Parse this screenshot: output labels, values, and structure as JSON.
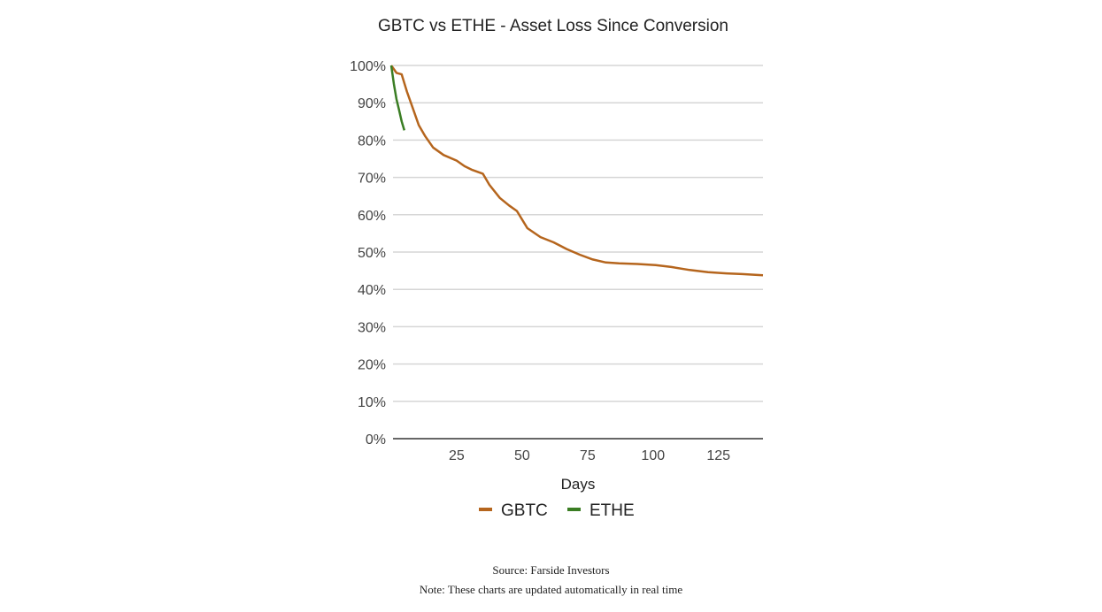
{
  "chart_data": {
    "type": "line",
    "title": "GBTC vs ETHE - Asset Loss Since Conversion",
    "xlabel": "Days",
    "ylabel": "",
    "xlim": [
      0,
      142
    ],
    "ylim": [
      0,
      100
    ],
    "x_ticks": [
      25,
      50,
      75,
      100,
      125
    ],
    "x_tick_labels": [
      "25",
      "50",
      "75",
      "100",
      "125"
    ],
    "y_ticks": [
      0,
      10,
      20,
      30,
      40,
      50,
      60,
      70,
      80,
      90,
      100
    ],
    "y_tick_labels": [
      "0%",
      "10%",
      "20%",
      "30%",
      "40%",
      "50%",
      "60%",
      "70%",
      "80%",
      "90%",
      "100%"
    ],
    "grid": true,
    "legend_position": "bottom",
    "series": [
      {
        "name": "GBTC",
        "color": "#b5651d",
        "points": [
          [
            0,
            100
          ],
          [
            2,
            98
          ],
          [
            4,
            97.6
          ],
          [
            6,
            93
          ],
          [
            8,
            89
          ],
          [
            10.5,
            84
          ],
          [
            13,
            81
          ],
          [
            16,
            78
          ],
          [
            20,
            76
          ],
          [
            25,
            74.5
          ],
          [
            28,
            73
          ],
          [
            31,
            72
          ],
          [
            35,
            71
          ],
          [
            37.5,
            68
          ],
          [
            41.5,
            64.5
          ],
          [
            45,
            62.5
          ],
          [
            48,
            61
          ],
          [
            52,
            56.4
          ],
          [
            57,
            54
          ],
          [
            62,
            52.6
          ],
          [
            67,
            50.8
          ],
          [
            72,
            49.3
          ],
          [
            77,
            48
          ],
          [
            82,
            47.2
          ],
          [
            87,
            47
          ],
          [
            94,
            46.8
          ],
          [
            101,
            46.5
          ],
          [
            107,
            46
          ],
          [
            114,
            45.2
          ],
          [
            121,
            44.6
          ],
          [
            128,
            44.3
          ],
          [
            134,
            44.1
          ],
          [
            142,
            43.8
          ]
        ]
      },
      {
        "name": "ETHE",
        "color": "#3a7d23",
        "points": [
          [
            0,
            100
          ],
          [
            1,
            95
          ],
          [
            2,
            91
          ],
          [
            3,
            88
          ],
          [
            4,
            85
          ],
          [
            5,
            82.6
          ]
        ]
      }
    ]
  },
  "footer": {
    "source": "Source: Farside Investors",
    "note": "Note: These charts are updated automatically in real time"
  }
}
